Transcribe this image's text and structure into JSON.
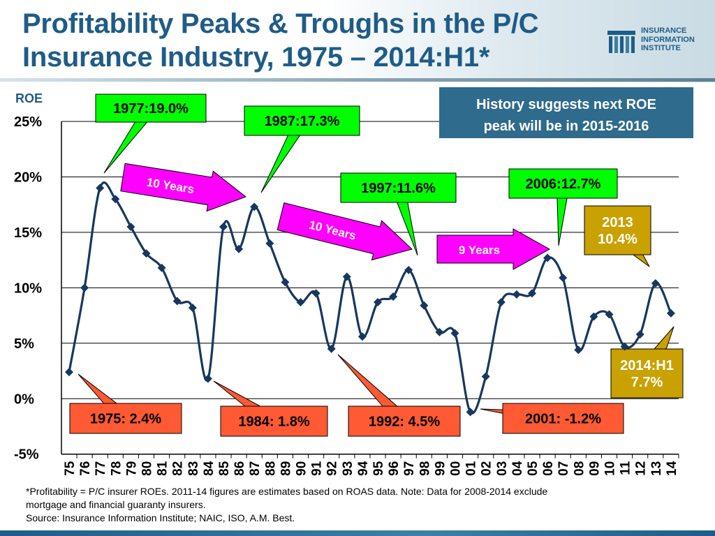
{
  "header": {
    "title_line1": "Profitability Peaks & Troughs in the P/C",
    "title_line2": "Insurance Industry, 1975 – 2014:H1*"
  },
  "logo": {
    "line1": "INSURANCE",
    "line2": "INFORMATION",
    "line3": "INSTITUTE"
  },
  "footnote": {
    "line1": "*Profitability =  P/C insurer ROEs. 2011-14 figures are estimates based on ROAS data.  Note:  Data for 2008-2014 exclude",
    "line2": "mortgage and financial guaranty insurers.",
    "line3": "Source:  Insurance Information Institute; NAIC, ISO, A.M. Best."
  },
  "colors": {
    "title": "#1f5c87",
    "line": "#17375e",
    "peak_callout": "#00ff00",
    "trough_callout": "#ff5a33",
    "arrow": "#ff00ff",
    "note_box": "#2f6b8c",
    "gold_box": "#c9a100"
  },
  "chart_data": {
    "type": "line",
    "ylabel": "ROE",
    "ylim": [
      -5,
      25
    ],
    "yticks": [
      "25%",
      "20%",
      "15%",
      "10%",
      "5%",
      "0%",
      "-5%"
    ],
    "ytick_values": [
      25,
      20,
      15,
      10,
      5,
      0,
      -5
    ],
    "grid": true,
    "categories": [
      "75",
      "76",
      "77",
      "78",
      "79",
      "80",
      "81",
      "82",
      "83",
      "84",
      "85",
      "86",
      "87",
      "88",
      "89",
      "90",
      "91",
      "92",
      "93",
      "94",
      "95",
      "96",
      "97",
      "98",
      "99",
      "00",
      "01",
      "02",
      "03",
      "04",
      "05",
      "06",
      "07",
      "08",
      "09",
      "10",
      "11",
      "12",
      "13",
      "14"
    ],
    "series": [
      {
        "values": [
          2.4,
          10.0,
          19.0,
          18.0,
          15.5,
          13.1,
          11.8,
          8.8,
          8.2,
          1.8,
          15.5,
          13.5,
          17.3,
          14.0,
          10.5,
          8.7,
          9.5,
          4.5,
          11.0,
          5.6,
          8.7,
          9.2,
          11.6,
          8.4,
          6.0,
          5.9,
          -1.2,
          2.0,
          8.7,
          9.4,
          9.5,
          12.7,
          10.9,
          4.4,
          7.4,
          7.6,
          4.7,
          5.8,
          10.4,
          7.7
        ]
      }
    ],
    "annotations": {
      "peaks": [
        "1977:19.0%",
        "1987:17.3%",
        "1997:11.6%",
        "2006:12.7%"
      ],
      "troughs": [
        "1975: 2.4%",
        "1984: 1.8%",
        "1992: 4.5%",
        "2001: -1.2%"
      ],
      "intervals": [
        "10 Years",
        "10 Years",
        "9 Years"
      ],
      "recent_2013": [
        "2013",
        "10.4%"
      ],
      "recent_2014": [
        "2014:H1",
        "7.7%"
      ],
      "note": [
        "History suggests next ROE",
        "peak will be in 2015-2016"
      ]
    }
  }
}
